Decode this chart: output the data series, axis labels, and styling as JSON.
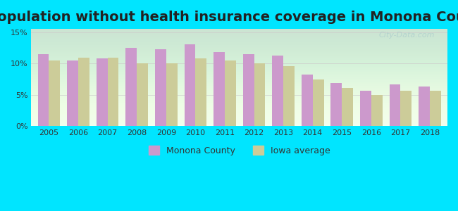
{
  "title": "Population without health insurance coverage in Monona County",
  "years": [
    2005,
    2006,
    2007,
    2008,
    2009,
    2010,
    2011,
    2012,
    2013,
    2014,
    2015,
    2016,
    2017,
    2018
  ],
  "monona_values": [
    11.5,
    10.5,
    10.8,
    12.5,
    12.3,
    13.0,
    11.8,
    11.5,
    11.2,
    8.2,
    6.9,
    5.6,
    6.7,
    6.3
  ],
  "iowa_values": [
    10.5,
    10.9,
    10.9,
    10.0,
    10.0,
    10.8,
    10.5,
    10.0,
    9.6,
    7.5,
    6.1,
    5.0,
    5.6,
    5.7
  ],
  "monona_color": "#cc99cc",
  "iowa_color": "#cccc99",
  "background_outer": "#00e5ff",
  "background_plot": "#f0fff0",
  "yticks": [
    0,
    5,
    10,
    15
  ],
  "ytick_labels": [
    "0%",
    "5%",
    "10%",
    "15%"
  ],
  "ylim": [
    0,
    15.5
  ],
  "title_fontsize": 14,
  "legend_label_monona": "Monona County",
  "legend_label_iowa": "Iowa average",
  "watermark": "City-Data.com"
}
